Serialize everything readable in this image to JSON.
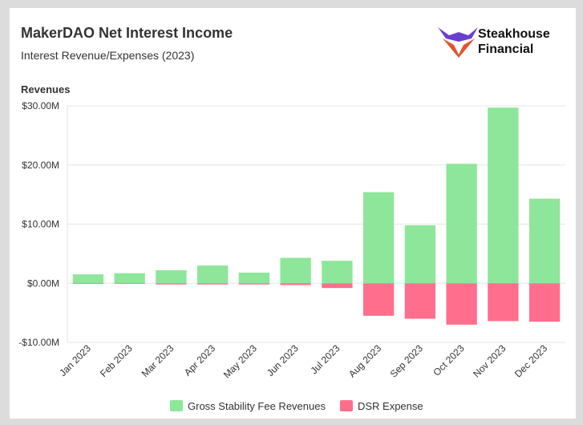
{
  "brand": "Steakhouse Financial",
  "chart_data": {
    "type": "bar",
    "title": "MakerDAO Net Interest Income",
    "subtitle": "Interest Revenue/Expenses (2023)",
    "y_label": "Revenues",
    "categories": [
      "Jan 2023",
      "Feb 2023",
      "Mar 2023",
      "Apr 2023",
      "May 2023",
      "Jun 2023",
      "Jul 2023",
      "Aug 2023",
      "Sep 2023",
      "Oct 2023",
      "Nov 2023",
      "Dec 2023"
    ],
    "series": [
      {
        "name": "Gross Stability Fee Revenues",
        "color": "#8de69a",
        "values": [
          1.5,
          1.7,
          2.2,
          3.0,
          1.8,
          4.3,
          3.8,
          15.4,
          9.8,
          20.2,
          29.7,
          14.3
        ]
      },
      {
        "name": "DSR Expense",
        "color": "#ff6e8c",
        "values": [
          -0.1,
          -0.1,
          -0.2,
          -0.2,
          -0.2,
          -0.3,
          -0.8,
          -5.5,
          -6.0,
          -7.0,
          -6.4,
          -6.5
        ]
      }
    ],
    "ylim": [
      -10,
      30
    ],
    "yticks": [
      {
        "value": -10,
        "label": "-$10.00M"
      },
      {
        "value": 0,
        "label": "$0.00M"
      },
      {
        "value": 10,
        "label": "$10.00M"
      },
      {
        "value": 20,
        "label": "$20.00M"
      },
      {
        "value": 30,
        "label": "$30.00M"
      }
    ],
    "grid": true,
    "legend": "bottom"
  }
}
